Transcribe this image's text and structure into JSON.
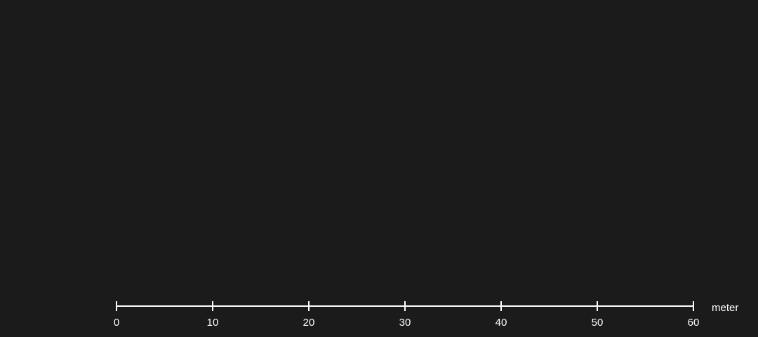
{
  "scale_bar": {
    "unit": "meter",
    "ticks": [
      0,
      10,
      20,
      30,
      40,
      50,
      60
    ],
    "tick_labels": [
      "0",
      "10",
      "20",
      "30",
      "40",
      "50",
      "60"
    ],
    "color": "#ffffff"
  },
  "background_color": "#1b1b1b"
}
